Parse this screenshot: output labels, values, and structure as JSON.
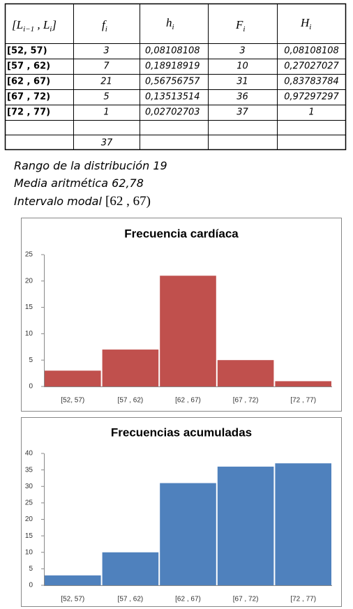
{
  "table": {
    "header": [
      [
        "[",
        "L",
        "i−1",
        " , ",
        "L",
        "i",
        "]"
      ],
      [
        "f",
        "i"
      ],
      [
        "h",
        "i"
      ],
      [
        "F",
        "i"
      ],
      [
        "H",
        "i"
      ]
    ],
    "rows": [
      [
        "[52, 57)",
        "3",
        "0,08108108",
        "3",
        "0,08108108"
      ],
      [
        "[57 , 62)",
        "7",
        "0,18918919",
        "10",
        "0,27027027"
      ],
      [
        "[62 , 67)",
        "21",
        "0,56756757",
        "31",
        "0,83783784"
      ],
      [
        "[67 , 72)",
        "5",
        "0,13513514",
        "36",
        "0,97297297"
      ],
      [
        "[72 , 77)",
        "1",
        "0,02702703",
        "37",
        "1"
      ]
    ],
    "total": "37"
  },
  "notes": [
    {
      "label": "Rango de la distribución",
      "value": "19"
    },
    {
      "label": "Media aritmética",
      "value": "62,78"
    },
    {
      "label": "Intervalo modal",
      "value": "[62 , 67)"
    }
  ],
  "chart_data": [
    {
      "type": "bar",
      "title": "Frecuencia cardíaca",
      "categories": [
        "[52, 57)",
        "[57 , 62)",
        "[62 , 67)",
        "[67 , 72)",
        "[72 , 77)"
      ],
      "values": [
        3,
        7,
        21,
        5,
        1
      ],
      "color": "#c0504d",
      "ylim": [
        0,
        25
      ],
      "yticks": [
        0,
        5,
        10,
        15,
        20,
        25
      ],
      "grid": false
    },
    {
      "type": "bar",
      "title": "Frecuencias acumuladas",
      "categories": [
        "[52, 57)",
        "[57 , 62)",
        "[62 , 67)",
        "[67 , 72)",
        "[72 , 77)"
      ],
      "values": [
        3,
        10,
        31,
        36,
        37
      ],
      "color": "#4f81bd",
      "ylim": [
        0,
        40
      ],
      "yticks": [
        0,
        5,
        10,
        15,
        20,
        25,
        30,
        35,
        40
      ],
      "grid": false
    }
  ]
}
